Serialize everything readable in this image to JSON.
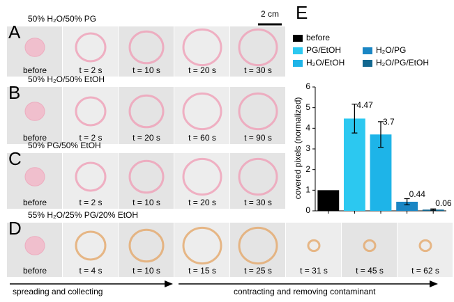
{
  "scale_bar": "2 cm",
  "panels": [
    {
      "letter": "A",
      "title": "50% H₂O/50% PG",
      "frames": [
        "before",
        "t = 2 s",
        "t = 10 s",
        "t = 20 s",
        "t = 30 s"
      ]
    },
    {
      "letter": "B",
      "title": "50% H₂O/50% EtOH",
      "frames": [
        "before",
        "t = 2 s",
        "t = 20 s",
        "t = 60 s",
        "t = 90 s"
      ]
    },
    {
      "letter": "C",
      "title": "50% PG/50% EtOH",
      "frames": [
        "before",
        "t = 2 s",
        "t = 10 s",
        "t = 20 s",
        "t = 30 s"
      ]
    },
    {
      "letter": "D",
      "title": "55% H₂O/25% PG/20% EtOH",
      "frames": [
        "before",
        "t = 4 s",
        "t = 10 s",
        "t = 15 s",
        "t = 25 s",
        "t = 31 s",
        "t = 45 s",
        "t = 62 s"
      ]
    }
  ],
  "arrows": [
    "spreading and collecting",
    "contracting and removing contaminant"
  ],
  "chart_data": {
    "type": "bar",
    "letter": "E",
    "categories": [
      "before",
      "PG/EtOH",
      "H₂O/EtOH",
      "H₂O/PG",
      "H₂O/PG/EtOH"
    ],
    "values": [
      1,
      4.47,
      3.7,
      0.44,
      0.06
    ],
    "value_labels": [
      null,
      "4.47",
      "3.7",
      "0.44",
      "0.06"
    ],
    "errors": [
      null,
      0.7,
      0.62,
      0.15,
      0.03
    ],
    "colors": [
      "#000000",
      "#2cc8f0",
      "#1eb4e8",
      "#1a86c4",
      "#12678f"
    ],
    "y_label": "covered pixels (normalized)",
    "ylim": [
      0,
      6
    ],
    "yticks": [
      0,
      1,
      2,
      3,
      4,
      5,
      6
    ]
  }
}
